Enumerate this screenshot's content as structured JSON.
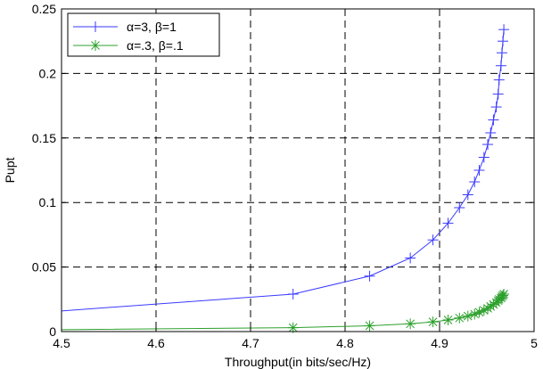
{
  "chart_data": {
    "type": "line",
    "title": "",
    "xlabel": "Throughput(in bits/sec/Hz)",
    "ylabel": "Pupt",
    "xlim": [
      4.5,
      5
    ],
    "ylim": [
      0,
      0.25
    ],
    "x_ticks": [
      "4.5",
      "4.6",
      "4.7",
      "4.8",
      "4.9",
      "5"
    ],
    "y_ticks": [
      "0",
      "0.05",
      "0.1",
      "0.15",
      "0.2",
      "0.25"
    ],
    "grid": true,
    "legend_position": "top-left",
    "series": [
      {
        "name": "α=3, β=1",
        "color": "#3a3aff",
        "marker": "plus",
        "points": [
          [
            4.5,
            0.016
          ],
          [
            4.745,
            0.029
          ],
          [
            4.826,
            0.043
          ],
          [
            4.869,
            0.057
          ],
          [
            4.893,
            0.071
          ],
          [
            4.909,
            0.084
          ],
          [
            4.921,
            0.096
          ],
          [
            4.93,
            0.106
          ],
          [
            4.937,
            0.116
          ],
          [
            4.942,
            0.125
          ],
          [
            4.947,
            0.135
          ],
          [
            4.951,
            0.145
          ],
          [
            4.954,
            0.154
          ],
          [
            4.957,
            0.164
          ],
          [
            4.96,
            0.174
          ],
          [
            4.962,
            0.184
          ],
          [
            4.963,
            0.195
          ],
          [
            4.965,
            0.206
          ],
          [
            4.966,
            0.216
          ],
          [
            4.967,
            0.225
          ],
          [
            4.968,
            0.234
          ]
        ]
      },
      {
        "name": "α=.3, β=.1",
        "color": "#2ca02c",
        "marker": "star",
        "points": [
          [
            4.5,
            0.0015
          ],
          [
            4.745,
            0.003
          ],
          [
            4.826,
            0.0045
          ],
          [
            4.869,
            0.006
          ],
          [
            4.893,
            0.0075
          ],
          [
            4.909,
            0.009
          ],
          [
            4.921,
            0.0105
          ],
          [
            4.93,
            0.012
          ],
          [
            4.937,
            0.0135
          ],
          [
            4.942,
            0.015
          ],
          [
            4.947,
            0.0165
          ],
          [
            4.951,
            0.018
          ],
          [
            4.954,
            0.0195
          ],
          [
            4.957,
            0.021
          ],
          [
            4.96,
            0.0225
          ],
          [
            4.962,
            0.024
          ],
          [
            4.963,
            0.025
          ],
          [
            4.965,
            0.026
          ],
          [
            4.966,
            0.027
          ],
          [
            4.967,
            0.028
          ],
          [
            4.968,
            0.029
          ]
        ]
      }
    ]
  }
}
